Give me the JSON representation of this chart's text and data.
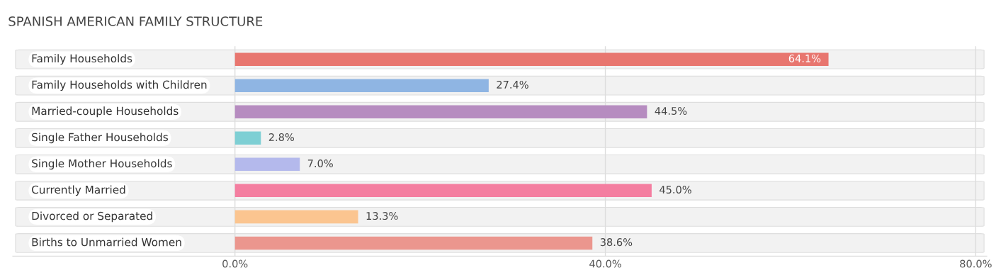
{
  "chart_data": {
    "type": "bar",
    "orientation": "horizontal",
    "title": "SPANISH AMERICAN FAMILY STRUCTURE",
    "categories": [
      "Family Households",
      "Family Households with Children",
      "Married-couple Households",
      "Single Father Households",
      "Single Mother Households",
      "Currently Married",
      "Divorced or Separated",
      "Births to Unmarried Women"
    ],
    "values": [
      64.1,
      27.4,
      44.5,
      2.8,
      7.0,
      45.0,
      13.3,
      38.6
    ],
    "colors": [
      "#e8766f",
      "#8fb5e3",
      "#b68cc0",
      "#7ecfd4",
      "#b4b9ec",
      "#f47ea0",
      "#fbc590",
      "#eb968e"
    ],
    "value_labels": [
      "64.1%",
      "27.4%",
      "44.5%",
      "2.8%",
      "7.0%",
      "45.0%",
      "13.3%",
      "38.6%"
    ],
    "xlim": [
      -24,
      81.2
    ],
    "xticks": [
      {
        "value": 0,
        "label": "0.0%"
      },
      {
        "value": 40,
        "label": "40.0%"
      },
      {
        "value": 80,
        "label": "80.0%"
      }
    ],
    "grid": "x"
  }
}
